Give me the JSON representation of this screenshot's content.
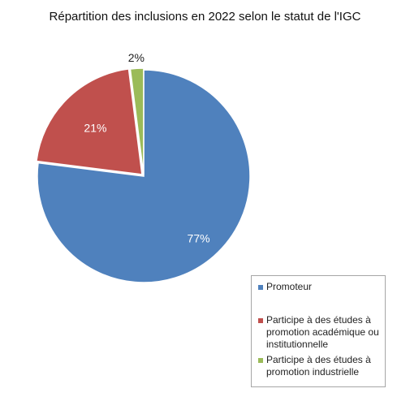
{
  "chart_data": {
    "type": "pie",
    "title": "Répartition des inclusions en 2022 selon le statut de l'IGC",
    "slices": [
      {
        "name": "Promoteur",
        "value": 77,
        "label": "77%",
        "color": "#4f81bd"
      },
      {
        "name": "Participe à des études à promotion académique ou institutionnelle",
        "value": 21,
        "label": "21%",
        "color": "#c0504d"
      },
      {
        "name": "Participe à des études à promotion industrielle",
        "value": 2,
        "label": "2%",
        "color": "#9bbb59"
      }
    ],
    "start_angle_deg": 0,
    "direction": "clockwise",
    "legend": {
      "placement": "bottom-right",
      "entries": [
        "Promoteur",
        "Participe à des études à promotion académique ou institutionnelle",
        "Participe à des études à promotion industrielle"
      ]
    }
  }
}
